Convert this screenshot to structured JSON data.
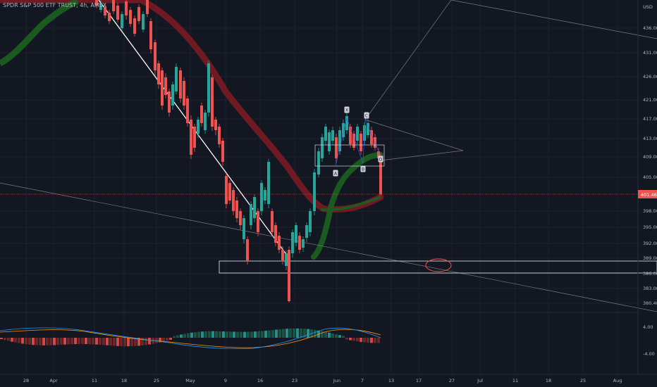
{
  "header": {
    "symbol_title": "SPDR S&P 500 ETF TRUST, 4h, AMEX"
  },
  "price_axis": {
    "currency": "USD",
    "labels": [
      "436.00",
      "431.00",
      "426.00",
      "421.00",
      "417.00",
      "413.00",
      "409.00",
      "405.00",
      "398.00",
      "395.00",
      "392.00",
      "389.00",
      "386.00",
      "383.00",
      "380.40"
    ],
    "last_price": "401.46"
  },
  "oscillator_axis": {
    "labels": [
      "4.00",
      "-4.00"
    ]
  },
  "time_axis": {
    "labels": [
      "28",
      "Apr",
      "11",
      "18",
      "25",
      "May",
      "9",
      "16",
      "23",
      "Jun",
      "7",
      "13",
      "17",
      "27",
      "Jul",
      "11",
      "18",
      "25",
      "Aug"
    ]
  },
  "pattern_markers": [
    "X",
    "A",
    "B",
    "C",
    "D"
  ],
  "colors": {
    "background": "#131722",
    "bull": "#26a69a",
    "bear": "#ef5350",
    "ribbon_red": "#8b1a22",
    "ribbon_green": "#1b5e20",
    "trendline_white": "#ffffff",
    "last_price_badge": "#ef5350"
  }
}
